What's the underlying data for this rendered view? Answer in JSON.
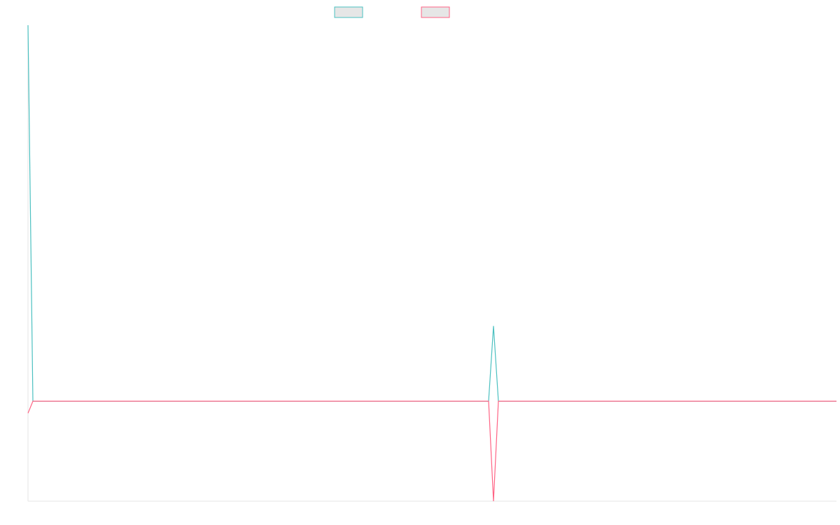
{
  "chart_data": {
    "type": "line",
    "x": [
      0,
      1,
      94,
      95,
      96,
      165
    ],
    "xlim": [
      0,
      165
    ],
    "ylim": [
      -26.6,
      100
    ],
    "legend": "top",
    "series": [
      {
        "color": "#4bc0c0",
        "values": [
          100,
          0,
          0,
          20,
          0,
          0
        ]
      },
      {
        "color": "#ff6384",
        "values": [
          -3.2,
          0,
          0,
          -26.6,
          0,
          0
        ]
      }
    ]
  }
}
